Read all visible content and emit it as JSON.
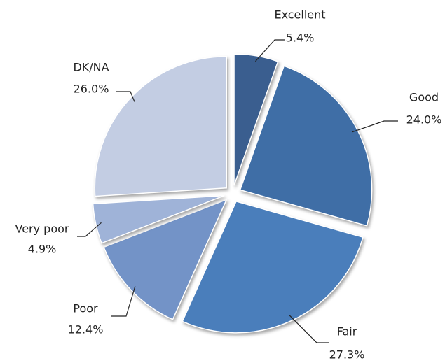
{
  "chart_data": {
    "type": "pie",
    "categories": [
      "Excellent",
      "Good",
      "Fair",
      "Poor",
      "Very poor",
      "DK/NA"
    ],
    "values": [
      5.4,
      24.0,
      27.3,
      12.4,
      4.9,
      26.0
    ],
    "value_labels": [
      "5.4%",
      "24.0%",
      "27.3%",
      "12.4%",
      "4.9%",
      "26.0%"
    ],
    "colors": [
      "#3a5e8f",
      "#3f6ea6",
      "#4a7ebb",
      "#7393c7",
      "#9fb3d8",
      "#c3cde3"
    ]
  }
}
